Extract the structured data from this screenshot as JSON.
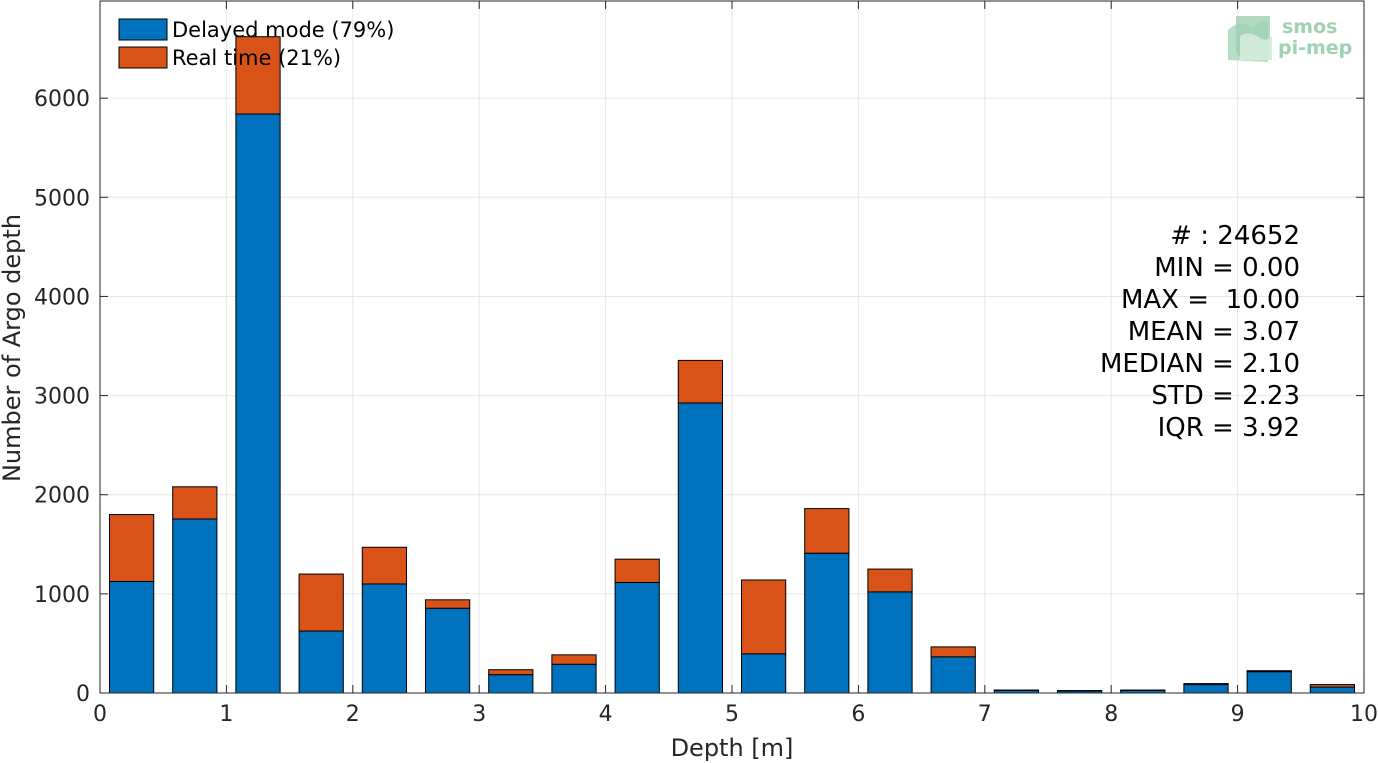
{
  "chart_data": {
    "type": "bar",
    "stacked": true,
    "bin_edges": [
      0,
      0.5,
      1,
      1.5,
      2,
      2.5,
      3,
      3.5,
      4,
      4.5,
      5,
      5.5,
      6,
      6.5,
      7,
      7.5,
      8,
      8.5,
      9,
      9.5,
      10
    ],
    "series": [
      {
        "name": "Delayed mode (79%)",
        "color": "#0072bd",
        "values": [
          1125,
          1755,
          5840,
          625,
          1100,
          855,
          185,
          290,
          1115,
          2925,
          395,
          1410,
          1020,
          365,
          25,
          20,
          25,
          85,
          215,
          60
        ]
      },
      {
        "name": "Real time (21%)",
        "color": "#d95319",
        "values": [
          675,
          325,
          780,
          575,
          370,
          85,
          50,
          95,
          235,
          430,
          745,
          450,
          230,
          100,
          5,
          5,
          5,
          10,
          10,
          25
        ]
      }
    ],
    "xlabel": "Depth [m]",
    "ylabel": "Number of Argo depth",
    "xlim": [
      0,
      10
    ],
    "ylim": [
      0,
      6980
    ],
    "xticks": [
      "0",
      "1",
      "2",
      "3",
      "4",
      "5",
      "6",
      "7",
      "8",
      "9",
      "10"
    ],
    "yticks": [
      "0",
      "1000",
      "2000",
      "3000",
      "4000",
      "5000",
      "6000"
    ],
    "grid": true,
    "legend_position": "top-left",
    "stats": [
      "# : 24652",
      "MIN = 0.00",
      "MAX =  10.00",
      "MEAN = 3.07",
      "MEDIAN = 2.10",
      "STD = 2.23",
      "IQR = 3.92"
    ]
  },
  "logo": {
    "line1": "smos",
    "line2": "pi-mep",
    "color": "#8fc9a8"
  }
}
